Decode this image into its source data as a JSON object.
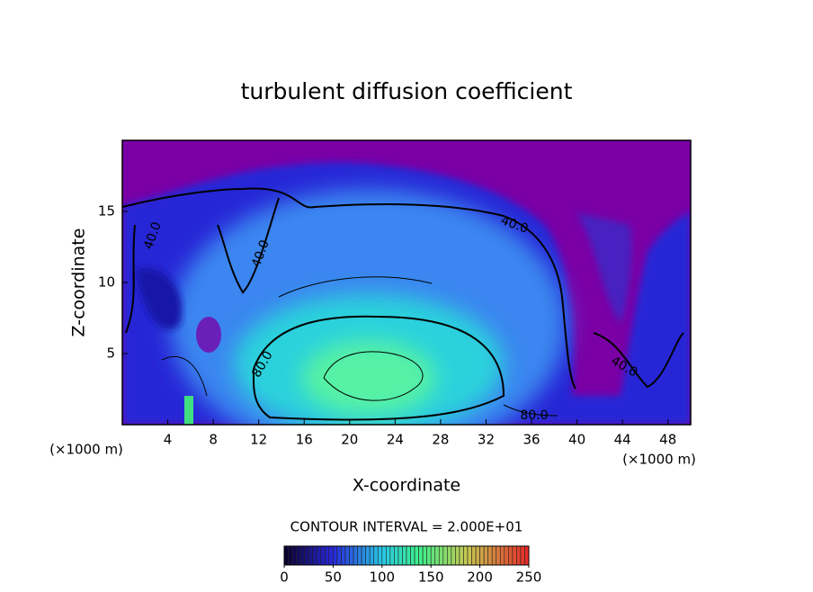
{
  "chart_data": {
    "type": "contour",
    "title": "turbulent diffusion coefficient",
    "x_label": "X-coordinate",
    "y_label": "Z-coordinate",
    "x_unit_label": "(×1000 m)",
    "xlim": [
      0,
      50
    ],
    "xticks": [
      4,
      8,
      12,
      16,
      20,
      24,
      28,
      32,
      36,
      40,
      44,
      48
    ],
    "ylim": [
      0,
      20
    ],
    "yticks": [
      5,
      10,
      15
    ],
    "contour_interval_label": "CONTOUR INTERVAL = 2.000E+01",
    "contour_labels": [
      "40.0",
      "80.0"
    ],
    "colorbar": {
      "lim": [
        0,
        250
      ],
      "ticks": [
        0,
        50,
        100,
        150,
        200,
        250
      ]
    }
  }
}
